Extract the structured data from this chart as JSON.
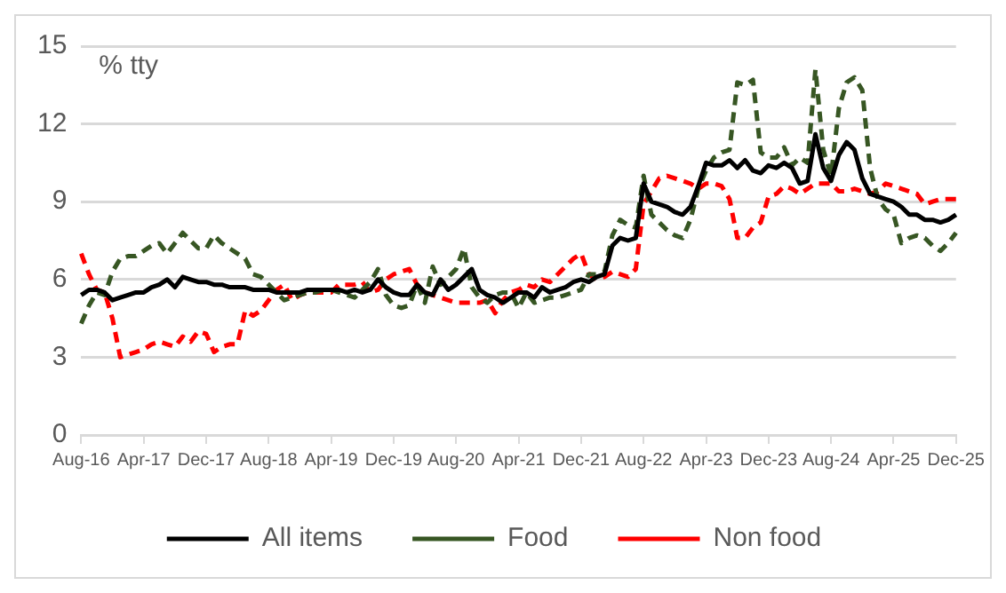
{
  "chart_data": {
    "type": "line",
    "ylabel": "% tty",
    "categories": [
      "Aug-16",
      null,
      null,
      null,
      null,
      null,
      null,
      null,
      "Apr-17",
      null,
      null,
      null,
      null,
      null,
      null,
      null,
      "Dec-17",
      null,
      null,
      null,
      null,
      null,
      null,
      null,
      "Aug-18",
      null,
      null,
      null,
      null,
      null,
      null,
      null,
      "Apr-19",
      null,
      null,
      null,
      null,
      null,
      null,
      null,
      "Dec-19",
      null,
      null,
      null,
      null,
      null,
      null,
      null,
      "Aug-20",
      null,
      null,
      null,
      null,
      null,
      null,
      null,
      "Apr-21",
      null,
      null,
      null,
      null,
      null,
      null,
      null,
      "Dec-21",
      null,
      null,
      null,
      null,
      null,
      null,
      null,
      "Aug-22",
      null,
      null,
      null,
      null,
      null,
      null,
      null,
      "Apr-23",
      null,
      null,
      null,
      null,
      null,
      null,
      null,
      "Dec-23",
      null,
      null,
      null,
      null,
      null,
      null,
      null,
      "Aug-24",
      null,
      null,
      null,
      null,
      null,
      null,
      null,
      "Apr-25",
      null,
      null,
      null,
      null,
      null,
      null,
      null,
      "Dec-25"
    ],
    "series": [
      {
        "name": "All items",
        "color": "#000000",
        "line_style": "solid",
        "values": [
          5.4,
          5.6,
          5.6,
          5.5,
          5.2,
          5.3,
          5.4,
          5.5,
          5.5,
          5.7,
          5.8,
          6.0,
          5.7,
          6.1,
          6.0,
          5.9,
          5.9,
          5.8,
          5.8,
          5.7,
          5.7,
          5.7,
          5.6,
          5.6,
          5.6,
          5.5,
          5.5,
          5.5,
          5.5,
          5.6,
          5.6,
          5.6,
          5.6,
          5.6,
          5.5,
          5.6,
          5.5,
          5.6,
          6.0,
          5.7,
          5.5,
          5.4,
          5.4,
          5.8,
          5.5,
          5.4,
          6.0,
          5.6,
          5.8,
          6.1,
          6.4,
          5.6,
          5.4,
          5.3,
          5.1,
          5.3,
          5.5,
          5.5,
          5.3,
          5.7,
          5.5,
          5.6,
          5.7,
          5.9,
          6.0,
          5.9,
          6.1,
          6.2,
          7.3,
          7.6,
          7.5,
          7.6,
          9.7,
          9.0,
          8.9,
          8.8,
          8.6,
          8.5,
          8.8,
          9.6,
          10.5,
          10.4,
          10.4,
          10.6,
          10.3,
          10.6,
          10.2,
          10.1,
          10.4,
          10.3,
          10.5,
          10.3,
          9.7,
          9.8,
          11.6,
          10.3,
          9.8,
          10.8,
          11.3,
          11.0,
          9.9,
          9.3,
          9.2,
          9.1,
          9.0,
          8.8,
          8.5,
          8.5,
          8.3,
          8.3,
          8.2,
          8.3,
          8.5
        ]
      },
      {
        "name": "Food",
        "color": "#375623",
        "line_style": "dashed",
        "values": [
          4.3,
          5.0,
          5.5,
          5.4,
          6.3,
          6.8,
          6.9,
          6.9,
          7.1,
          7.3,
          7.4,
          7.0,
          7.4,
          7.8,
          7.5,
          7.2,
          7.2,
          7.7,
          7.4,
          7.2,
          7.0,
          6.8,
          6.2,
          6.1,
          5.8,
          5.5,
          5.2,
          5.3,
          5.4,
          5.5,
          5.5,
          5.6,
          5.6,
          5.5,
          5.4,
          5.3,
          5.6,
          5.9,
          6.4,
          5.4,
          5.0,
          4.9,
          5.0,
          5.8,
          5.1,
          6.5,
          5.8,
          6.1,
          6.4,
          7.2,
          5.7,
          5.3,
          5.1,
          5.4,
          5.5,
          5.5,
          4.9,
          5.5,
          5.1,
          5.2,
          5.3,
          5.3,
          5.4,
          5.5,
          5.6,
          6.2,
          6.2,
          6.3,
          7.7,
          8.3,
          8.1,
          8.0,
          10.0,
          8.5,
          8.2,
          7.9,
          7.7,
          7.6,
          8.3,
          9.5,
          10.2,
          10.7,
          10.9,
          11.0,
          13.6,
          13.5,
          13.7,
          10.9,
          10.7,
          10.7,
          11.1,
          10.4,
          10.7,
          10.5,
          14.1,
          11.0,
          10.0,
          12.6,
          13.6,
          13.8,
          13.3,
          10.3,
          9.1,
          8.7,
          8.5,
          7.4,
          7.6,
          7.7,
          7.6,
          7.3,
          7.1,
          7.4,
          7.8
        ]
      },
      {
        "name": "Non food",
        "color": "#ff0000",
        "line_style": "dashed",
        "values": [
          7.0,
          6.2,
          5.6,
          5.5,
          4.5,
          3.0,
          3.1,
          3.2,
          3.3,
          3.5,
          3.6,
          3.5,
          3.4,
          3.8,
          3.6,
          4.0,
          3.9,
          3.2,
          3.4,
          3.5,
          3.5,
          4.8,
          4.6,
          4.8,
          5.2,
          5.6,
          5.8,
          5.2,
          5.4,
          5.5,
          5.5,
          5.5,
          5.5,
          5.8,
          5.8,
          5.8,
          5.9,
          5.5,
          5.6,
          6.0,
          6.2,
          6.3,
          6.4,
          5.8,
          5.5,
          5.4,
          5.3,
          5.2,
          5.1,
          5.1,
          5.1,
          5.1,
          5.2,
          4.7,
          5.2,
          5.5,
          5.6,
          5.8,
          5.7,
          6.0,
          5.9,
          6.2,
          6.5,
          6.8,
          7.0,
          6.2,
          6.0,
          6.1,
          6.3,
          6.2,
          6.1,
          6.4,
          8.9,
          9.4,
          9.9,
          10.0,
          9.9,
          9.8,
          9.7,
          9.5,
          9.7,
          9.7,
          9.6,
          9.1,
          7.6,
          7.6,
          8.0,
          8.2,
          9.2,
          9.3,
          9.6,
          9.5,
          9.3,
          9.5,
          9.7,
          9.7,
          9.7,
          9.4,
          9.4,
          9.5,
          9.4,
          9.3,
          9.4,
          9.7,
          9.6,
          9.5,
          9.4,
          9.3,
          8.9,
          9.0,
          9.1,
          9.1,
          9.1
        ]
      }
    ],
    "ylim": [
      0,
      15
    ],
    "yticks": [
      0,
      3,
      6,
      9,
      12,
      15
    ],
    "grid": "y",
    "legend": "bottom",
    "marker": "none"
  }
}
